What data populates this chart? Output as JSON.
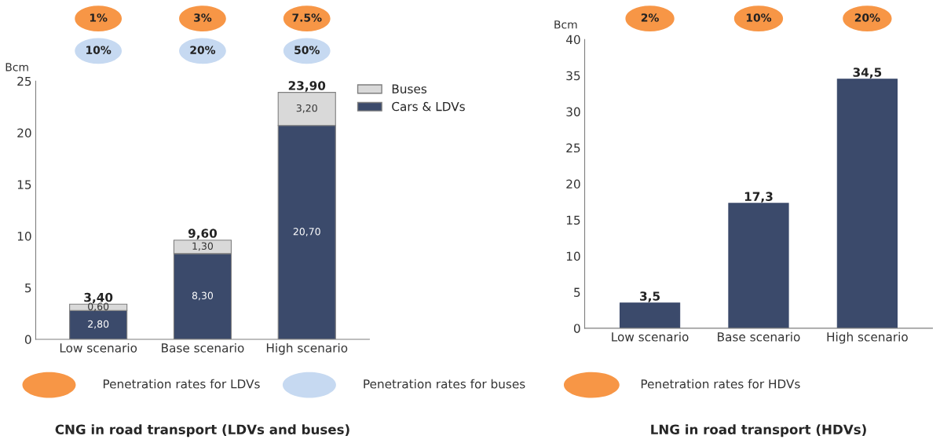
{
  "chart_data": [
    {
      "type": "bar",
      "title": "CNG in road transport (LDVs and buses)",
      "ylabel": "Bcm",
      "stacked": true,
      "legend": "top right",
      "grid": false,
      "categories": [
        "Low scenario",
        "Base scenario",
        "High scenario"
      ],
      "series": [
        {
          "name": "Cars & LDVs",
          "color": "#3b4a6b",
          "values": [
            2.8,
            8.3,
            20.7
          ],
          "value_labels": [
            "2,80",
            "8,30",
            "20,70"
          ]
        },
        {
          "name": "Buses",
          "color": "#d9d9d9",
          "values": [
            0.6,
            1.3,
            3.2
          ],
          "value_labels": [
            "0,60",
            "1,30",
            "3,20"
          ]
        }
      ],
      "totals": [
        "3,40",
        "9,60",
        "23,90"
      ],
      "ylim": [
        0,
        25
      ],
      "yticks": [
        0,
        5,
        10,
        15,
        20,
        25
      ],
      "annotations": [
        "1%",
        "3%",
        "7.5%",
        "10%",
        "20%",
        "50%",
        "Penetration rates for LDVs",
        "Penetration rates for buses"
      ]
    },
    {
      "type": "bar",
      "title": "LNG in road transport (HDVs)",
      "ylabel": "Bcm",
      "grid": false,
      "categories": [
        "Low scenario",
        "Base scenario",
        "High scenario"
      ],
      "series": [
        {
          "color": "#3b4a6b",
          "values": [
            3.5,
            17.3,
            34.5
          ],
          "value_labels": [
            "3,5",
            "17,3",
            "34,5"
          ]
        }
      ],
      "ylim": [
        0,
        40
      ],
      "yticks": [
        0,
        5,
        10,
        15,
        20,
        25,
        30,
        35,
        40
      ],
      "annotations": [
        "2%",
        "10%",
        "20%",
        "Penetration rates for HDVs"
      ]
    }
  ]
}
